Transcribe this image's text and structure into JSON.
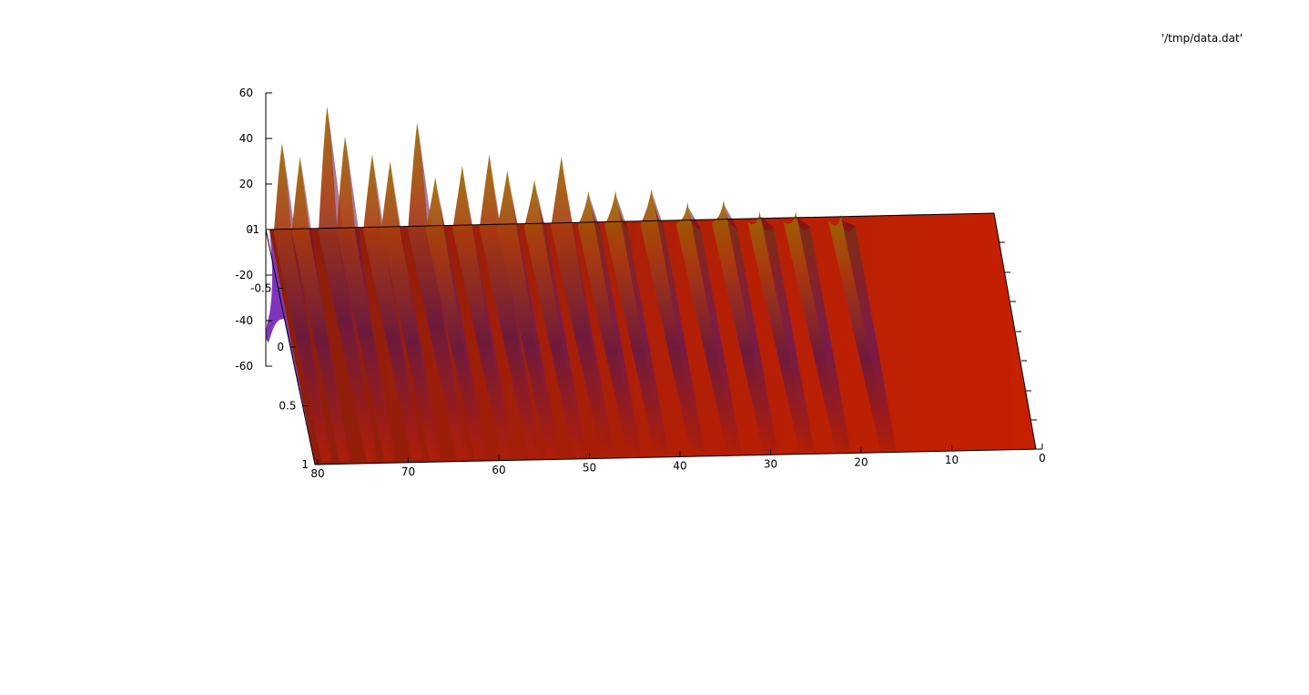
{
  "legend": {
    "label": "'/tmp/data.dat'"
  },
  "chart_data": {
    "type": "surface",
    "title": "",
    "series": [
      {
        "name": "'/tmp/data.dat'"
      }
    ],
    "axes": {
      "x": {
        "range": [
          0,
          80
        ],
        "ticks": [
          "0",
          "10",
          "20",
          "30",
          "40",
          "50",
          "60",
          "70",
          "80"
        ]
      },
      "y": {
        "range": [
          -1,
          1
        ],
        "ticks": [
          "-1",
          "-0.5",
          "0",
          "0.5",
          "1"
        ]
      },
      "z": {
        "range": [
          -60,
          60
        ],
        "ticks": [
          "-60",
          "-40",
          "-20",
          "0",
          "20",
          "40",
          "60"
        ]
      }
    },
    "ridges": [
      {
        "x": 79,
        "peak": 38
      },
      {
        "x": 77,
        "peak": 32
      },
      {
        "x": 74,
        "peak": 54
      },
      {
        "x": 72,
        "peak": 41
      },
      {
        "x": 69,
        "peak": 33
      },
      {
        "x": 67,
        "peak": 30
      },
      {
        "x": 64,
        "peak": 47
      },
      {
        "x": 62,
        "peak": 23
      },
      {
        "x": 59,
        "peak": 28
      },
      {
        "x": 56,
        "peak": 33
      },
      {
        "x": 54,
        "peak": 26
      },
      {
        "x": 51,
        "peak": 22
      },
      {
        "x": 48,
        "peak": 32
      },
      {
        "x": 45,
        "peak": 17
      },
      {
        "x": 42,
        "peak": 17
      },
      {
        "x": 38,
        "peak": 18
      },
      {
        "x": 34,
        "peak": 12
      },
      {
        "x": 30,
        "peak": 13
      },
      {
        "x": 26,
        "peak": 8
      },
      {
        "x": 22,
        "peak": 8
      },
      {
        "x": 17,
        "peak": 2
      }
    ],
    "min_value": -50,
    "grid": false,
    "legend_position": "top-right",
    "colors": {
      "low": "#6a00c8",
      "mid": "#8a2a10",
      "high": "#c81e00",
      "peak": "#a88000"
    }
  }
}
